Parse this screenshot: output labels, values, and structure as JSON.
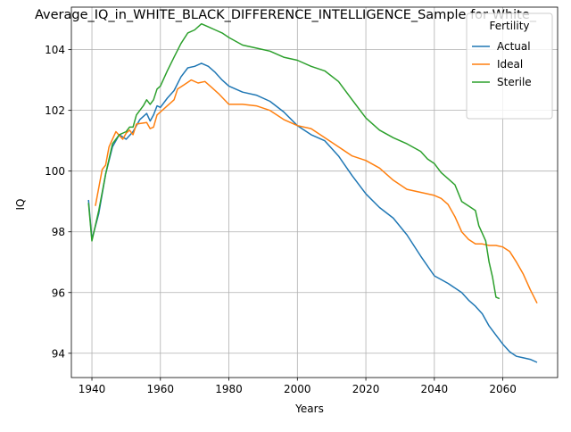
{
  "chart_data": {
    "type": "line",
    "title": "Average_IQ_in_WHITE_BLACK_DIFFERENCE_INTELLIGENCE_Sample for White_",
    "xlabel": "Years",
    "ylabel": "IQ",
    "xlim": [
      1934,
      2076
    ],
    "ylim": [
      93.2,
      105.4
    ],
    "x_ticks": [
      1940,
      1960,
      1980,
      2000,
      2020,
      2040,
      2060
    ],
    "y_ticks": [
      94,
      96,
      98,
      100,
      102,
      104
    ],
    "grid": true,
    "legend": {
      "title": "Fertility",
      "placement": "top-right"
    },
    "series": [
      {
        "name": "Actual",
        "color": "#1f77b4",
        "points": [
          [
            1939,
            99.05
          ],
          [
            1940,
            97.75
          ],
          [
            1942,
            98.6
          ],
          [
            1944,
            99.9
          ],
          [
            1946,
            100.8
          ],
          [
            1948,
            101.2
          ],
          [
            1950,
            101.05
          ],
          [
            1952,
            101.3
          ],
          [
            1954,
            101.7
          ],
          [
            1956,
            101.9
          ],
          [
            1957,
            101.65
          ],
          [
            1958,
            101.85
          ],
          [
            1959,
            102.15
          ],
          [
            1960,
            102.1
          ],
          [
            1962,
            102.4
          ],
          [
            1964,
            102.65
          ],
          [
            1966,
            103.1
          ],
          [
            1968,
            103.4
          ],
          [
            1970,
            103.45
          ],
          [
            1972,
            103.55
          ],
          [
            1974,
            103.45
          ],
          [
            1976,
            103.25
          ],
          [
            1978,
            103.0
          ],
          [
            1980,
            102.8
          ],
          [
            1984,
            102.6
          ],
          [
            1988,
            102.5
          ],
          [
            1992,
            102.3
          ],
          [
            1996,
            101.95
          ],
          [
            2000,
            101.5
          ],
          [
            2004,
            101.2
          ],
          [
            2008,
            101.0
          ],
          [
            2012,
            100.5
          ],
          [
            2016,
            99.85
          ],
          [
            2020,
            99.25
          ],
          [
            2024,
            98.8
          ],
          [
            2028,
            98.45
          ],
          [
            2032,
            97.9
          ],
          [
            2036,
            97.2
          ],
          [
            2040,
            96.55
          ],
          [
            2044,
            96.3
          ],
          [
            2048,
            96.0
          ],
          [
            2050,
            95.75
          ],
          [
            2052,
            95.55
          ],
          [
            2054,
            95.3
          ],
          [
            2056,
            94.9
          ],
          [
            2058,
            94.6
          ],
          [
            2060,
            94.3
          ],
          [
            2062,
            94.05
          ],
          [
            2064,
            93.9
          ],
          [
            2066,
            93.85
          ],
          [
            2068,
            93.8
          ],
          [
            2070,
            93.7
          ]
        ]
      },
      {
        "name": "Ideal",
        "color": "#ff7f0e",
        "points": [
          [
            1941,
            98.85
          ],
          [
            1943,
            100.05
          ],
          [
            1944,
            100.2
          ],
          [
            1945,
            100.8
          ],
          [
            1947,
            101.3
          ],
          [
            1949,
            101.05
          ],
          [
            1950,
            101.25
          ],
          [
            1951,
            101.35
          ],
          [
            1952,
            101.2
          ],
          [
            1953,
            101.55
          ],
          [
            1956,
            101.6
          ],
          [
            1957,
            101.4
          ],
          [
            1958,
            101.45
          ],
          [
            1959,
            101.85
          ],
          [
            1960,
            101.95
          ],
          [
            1962,
            102.15
          ],
          [
            1964,
            102.35
          ],
          [
            1965,
            102.7
          ],
          [
            1967,
            102.85
          ],
          [
            1969,
            103.0
          ],
          [
            1971,
            102.9
          ],
          [
            1973,
            102.95
          ],
          [
            1975,
            102.75
          ],
          [
            1977,
            102.55
          ],
          [
            1980,
            102.2
          ],
          [
            1984,
            102.2
          ],
          [
            1988,
            102.15
          ],
          [
            1992,
            102.0
          ],
          [
            1996,
            101.7
          ],
          [
            2000,
            101.5
          ],
          [
            2004,
            101.4
          ],
          [
            2008,
            101.1
          ],
          [
            2012,
            100.8
          ],
          [
            2016,
            100.5
          ],
          [
            2020,
            100.35
          ],
          [
            2024,
            100.1
          ],
          [
            2028,
            99.7
          ],
          [
            2032,
            99.4
          ],
          [
            2036,
            99.3
          ],
          [
            2040,
            99.2
          ],
          [
            2042,
            99.1
          ],
          [
            2044,
            98.9
          ],
          [
            2046,
            98.5
          ],
          [
            2048,
            98.0
          ],
          [
            2050,
            97.75
          ],
          [
            2052,
            97.6
          ],
          [
            2054,
            97.6
          ],
          [
            2056,
            97.55
          ],
          [
            2058,
            97.55
          ],
          [
            2060,
            97.5
          ],
          [
            2062,
            97.35
          ],
          [
            2064,
            97.0
          ],
          [
            2066,
            96.6
          ],
          [
            2068,
            96.1
          ],
          [
            2070,
            95.65
          ]
        ]
      },
      {
        "name": "Sterile",
        "color": "#2ca02c",
        "points": [
          [
            1939,
            98.95
          ],
          [
            1940,
            97.7
          ],
          [
            1942,
            98.7
          ],
          [
            1944,
            99.9
          ],
          [
            1946,
            100.9
          ],
          [
            1948,
            101.2
          ],
          [
            1950,
            101.3
          ],
          [
            1951,
            101.45
          ],
          [
            1952,
            101.45
          ],
          [
            1953,
            101.85
          ],
          [
            1955,
            102.15
          ],
          [
            1956,
            102.35
          ],
          [
            1957,
            102.2
          ],
          [
            1958,
            102.35
          ],
          [
            1959,
            102.7
          ],
          [
            1960,
            102.8
          ],
          [
            1962,
            103.3
          ],
          [
            1964,
            103.75
          ],
          [
            1966,
            104.2
          ],
          [
            1968,
            104.55
          ],
          [
            1970,
            104.65
          ],
          [
            1972,
            104.85
          ],
          [
            1974,
            104.75
          ],
          [
            1976,
            104.65
          ],
          [
            1978,
            104.55
          ],
          [
            1980,
            104.4
          ],
          [
            1984,
            104.15
          ],
          [
            1988,
            104.05
          ],
          [
            1992,
            103.95
          ],
          [
            1996,
            103.75
          ],
          [
            2000,
            103.65
          ],
          [
            2004,
            103.45
          ],
          [
            2008,
            103.3
          ],
          [
            2012,
            102.95
          ],
          [
            2016,
            102.35
          ],
          [
            2020,
            101.75
          ],
          [
            2024,
            101.35
          ],
          [
            2028,
            101.1
          ],
          [
            2032,
            100.9
          ],
          [
            2036,
            100.65
          ],
          [
            2038,
            100.4
          ],
          [
            2040,
            100.25
          ],
          [
            2042,
            99.95
          ],
          [
            2044,
            99.75
          ],
          [
            2046,
            99.55
          ],
          [
            2048,
            99.0
          ],
          [
            2050,
            98.85
          ],
          [
            2052,
            98.7
          ],
          [
            2053,
            98.2
          ],
          [
            2054,
            97.95
          ],
          [
            2055,
            97.7
          ],
          [
            2056,
            97.0
          ],
          [
            2057,
            96.5
          ],
          [
            2058,
            95.85
          ],
          [
            2059,
            95.8
          ]
        ]
      }
    ]
  }
}
